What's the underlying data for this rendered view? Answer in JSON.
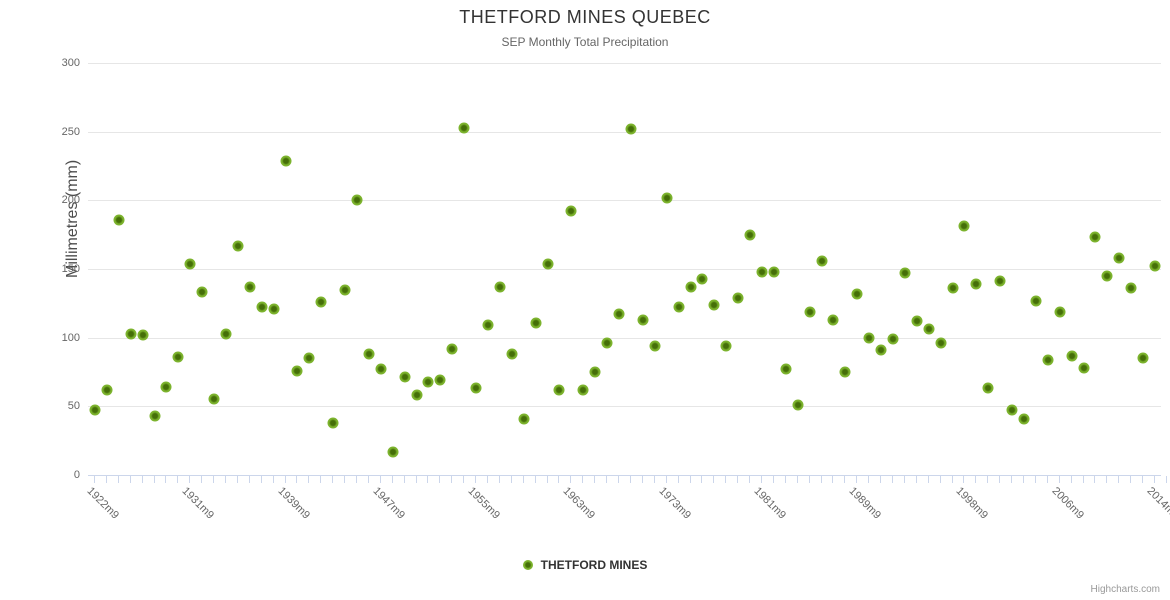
{
  "header": {
    "title": "THETFORD MINES QUEBEC",
    "subtitle": "SEP Monthly Total Precipitation"
  },
  "legend": {
    "label": "THETFORD MINES"
  },
  "credits": {
    "label": "Highcharts.com"
  },
  "chart_data": {
    "type": "scatter",
    "title": "THETFORD MINES QUEBEC",
    "subtitle": "SEP Monthly Total Precipitation",
    "xlabel": "",
    "ylabel": "Millimetres (mm)",
    "ylim": [
      0,
      300
    ],
    "yticks": [
      0,
      50,
      100,
      150,
      200,
      250,
      300
    ],
    "grid": true,
    "legend_position": "bottom-center",
    "series_name": "THETFORD MINES",
    "marker_color": "#7cb32d",
    "marker_core_color": "#456f08",
    "categories": [
      "1922m9",
      "1923m9",
      "1924m9",
      "1925m9",
      "1926m9",
      "1927m9",
      "1928m9",
      "1930m9",
      "1931m9",
      "1932m9",
      "1933m9",
      "1934m9",
      "1935m9",
      "1936m9",
      "1937m9",
      "1938m9",
      "1939m9",
      "1940m9",
      "1941m9",
      "1942m9",
      "1943m9",
      "1944m9",
      "1945m9",
      "1946m9",
      "1947m9",
      "1948m9",
      "1949m9",
      "1950m9",
      "1951m9",
      "1952m9",
      "1953m9",
      "1954m9",
      "1955m9",
      "1956m9",
      "1957m9",
      "1958m9",
      "1959m9",
      "1960m9",
      "1961m9",
      "1962m9",
      "1963m9",
      "1964m9",
      "1965m9",
      "1966m9",
      "1968m9",
      "1970m9",
      "1971m9",
      "1972m9",
      "1973m9",
      "1974m9",
      "1975m9",
      "1976m9",
      "1977m9",
      "1978m9",
      "1979m9",
      "1980m9",
      "1981m9",
      "1982m9",
      "1983m9",
      "1984m9",
      "1985m9",
      "1986m9",
      "1987m9",
      "1988m9",
      "1989m9",
      "1990m9",
      "1991m9",
      "1992m9",
      "1993m9",
      "1994m9",
      "1995m9",
      "1996m9",
      "1997m9",
      "1998m9",
      "1999m9",
      "2000m9",
      "2001m9",
      "2002m9",
      "2003m9",
      "2004m9",
      "2005m9",
      "2006m9",
      "2007m9",
      "2008m9",
      "2009m9",
      "2010m9",
      "2011m9",
      "2012m9",
      "2013m9",
      "2014m9"
    ],
    "values": [
      47,
      62,
      186,
      103,
      102,
      43,
      64,
      86,
      154,
      133,
      55,
      103,
      167,
      137,
      122,
      121,
      229,
      76,
      85,
      126,
      38,
      135,
      200,
      88,
      77,
      17,
      71,
      58,
      68,
      69,
      92,
      253,
      63,
      109,
      137,
      88,
      41,
      111,
      154,
      62,
      192,
      62,
      75,
      96,
      117,
      252,
      113,
      94,
      202,
      122,
      137,
      143,
      124,
      94,
      129,
      175,
      148,
      148,
      77,
      51,
      119,
      156,
      113,
      75,
      132,
      100,
      91,
      99,
      147,
      112,
      106,
      96,
      136,
      181,
      139,
      63,
      141,
      47,
      41,
      127,
      84,
      119,
      87,
      78,
      173,
      145,
      158,
      136,
      85,
      152
    ],
    "visible_x_labels": [
      "1922m9",
      "1931m9",
      "1939m9",
      "1947m9",
      "1955m9",
      "1963m9",
      "1973m9",
      "1981m9",
      "1989m9",
      "1998m9",
      "2006m9",
      "2014m9"
    ]
  }
}
